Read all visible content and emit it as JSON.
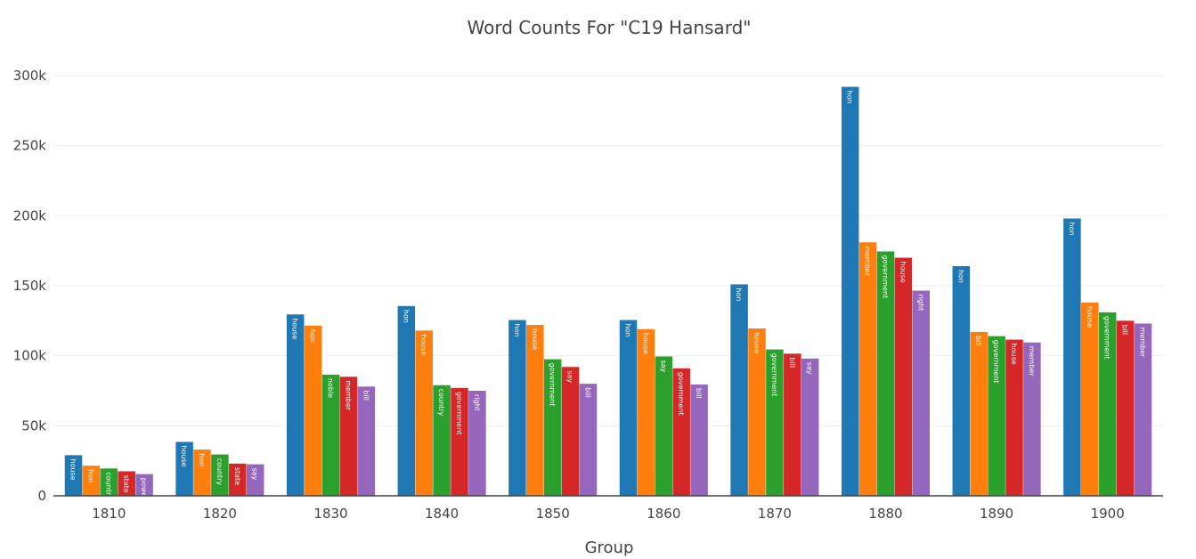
{
  "chart_data": {
    "type": "bar",
    "title": "Word Counts For \"C19 Hansard\"",
    "xlabel": "Group",
    "ylabel": "",
    "ylim": [
      0,
      300000
    ],
    "yticks": [
      {
        "value": 0,
        "label": "0"
      },
      {
        "value": 50000,
        "label": "50k"
      },
      {
        "value": 100000,
        "label": "100k"
      },
      {
        "value": 150000,
        "label": "150k"
      },
      {
        "value": 200000,
        "label": "200k"
      },
      {
        "value": 250000,
        "label": "250k"
      },
      {
        "value": 300000,
        "label": "300k"
      }
    ],
    "grid": true,
    "categories": [
      "1810",
      "1820",
      "1830",
      "1840",
      "1850",
      "1860",
      "1870",
      "1880",
      "1890",
      "1900"
    ],
    "colors": [
      "#1f77b4",
      "#ff7f0e",
      "#2ca02c",
      "#d62728",
      "#9467bd"
    ],
    "series": [
      {
        "values": [
          29000,
          38500,
          129500,
          135500,
          125500,
          125500,
          151000,
          292000,
          164000,
          198000
        ],
        "labels": [
          "house",
          "house",
          "house",
          "hon",
          "hon",
          "hon",
          "hon",
          "hon",
          "hon",
          "hon"
        ]
      },
      {
        "values": [
          21500,
          33000,
          121500,
          118000,
          122000,
          119000,
          119500,
          181000,
          117000,
          138000
        ],
        "labels": [
          "hon",
          "hon",
          "hon",
          "house",
          "house",
          "house",
          "house",
          "member",
          "bill",
          "house"
        ]
      },
      {
        "values": [
          19500,
          29500,
          86500,
          79000,
          97500,
          99500,
          104500,
          174500,
          114000,
          131000
        ],
        "labels": [
          "country",
          "country",
          "noble",
          "country",
          "government",
          "say",
          "government",
          "government",
          "government",
          "government"
        ]
      },
      {
        "values": [
          17500,
          23000,
          85000,
          77000,
          92000,
          91000,
          101500,
          170000,
          111500,
          125000
        ],
        "labels": [
          "state",
          "state",
          "member",
          "government",
          "say",
          "government",
          "bill",
          "house",
          "house",
          "bill"
        ]
      },
      {
        "values": [
          15500,
          22500,
          78000,
          75000,
          80000,
          79500,
          98000,
          146500,
          109500,
          123000
        ],
        "labels": [
          "power",
          "say",
          "bill",
          "right",
          "bill",
          "bill",
          "say",
          "right",
          "member",
          "member"
        ]
      }
    ]
  }
}
